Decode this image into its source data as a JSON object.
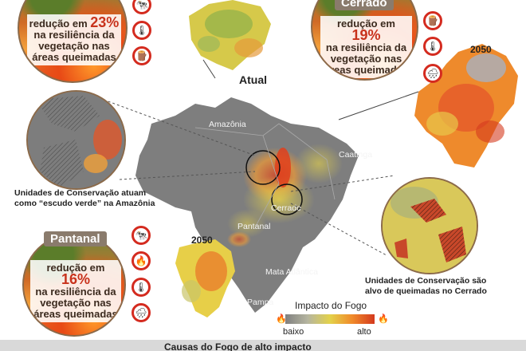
{
  "panels": {
    "top_left": {
      "reduction_prefix": "redução em",
      "percent": "23%",
      "text": "na resiliência da vegetação nas áreas queimadas"
    },
    "cerrado": {
      "title": "Cerrado",
      "reduction_prefix": "redução em",
      "percent": "19%",
      "text": "na resiliência da vegetação nas áreas queimadas"
    },
    "pantanal": {
      "title": "Pantanal",
      "reduction_prefix": "redução em",
      "percent": "16%",
      "text": "na resiliência da vegetação nas áreas queimadas"
    }
  },
  "map": {
    "current_label": "Atual",
    "year_right": "2050",
    "year_left": "2050",
    "regions": {
      "amazonia": "Amazônia",
      "caatinga": "Caatinga",
      "cerrado": "Cerrado",
      "pantanal": "Pantanal",
      "mata_atlantica": "Mata Atlântica",
      "pampa": "Pampa"
    }
  },
  "captions": {
    "amazon_uc": "Unidades de Conservação atuam como “escudo verde” na Amazônia",
    "cerrado_uc": "Unidades de Conservação são alvo de queimadas no Cerrado"
  },
  "legend": {
    "title": "Impacto do Fogo",
    "low": "baixo",
    "high": "alto",
    "colors": [
      "#808080",
      "#b5b5a0",
      "#e3d24a",
      "#f08a2a",
      "#d43a1e"
    ]
  },
  "footer": {
    "title": "Causas do Fogo de alto impacto"
  },
  "icons": [
    "cattle-icon",
    "temperature-up-icon",
    "deforestation-icon",
    "fire-icon",
    "drought-rain-icon"
  ]
}
